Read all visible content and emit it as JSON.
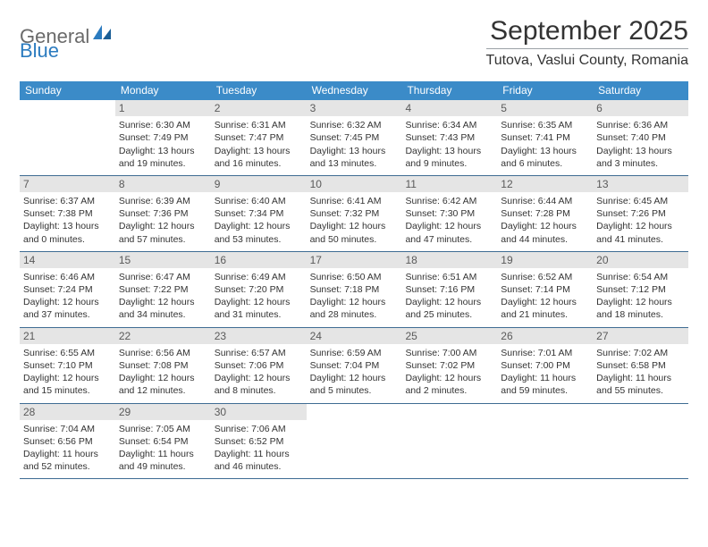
{
  "logo": {
    "general": "General",
    "blue": "Blue"
  },
  "header": {
    "month_title": "September 2025",
    "location": "Tutova, Vaslui County, Romania"
  },
  "colors": {
    "header_bg": "#3b8bc8",
    "header_text": "#ffffff",
    "daynum_bg": "#e5e5e5",
    "week_border": "#3f6c93",
    "text": "#333333",
    "logo_gray": "#6a6a6a",
    "logo_blue": "#2b7bbf"
  },
  "day_headers": [
    "Sunday",
    "Monday",
    "Tuesday",
    "Wednesday",
    "Thursday",
    "Friday",
    "Saturday"
  ],
  "weeks": [
    [
      {
        "n": "",
        "sr": "",
        "ss": "",
        "dl1": "",
        "dl2": "",
        "empty": true
      },
      {
        "n": "1",
        "sr": "Sunrise: 6:30 AM",
        "ss": "Sunset: 7:49 PM",
        "dl1": "Daylight: 13 hours",
        "dl2": "and 19 minutes."
      },
      {
        "n": "2",
        "sr": "Sunrise: 6:31 AM",
        "ss": "Sunset: 7:47 PM",
        "dl1": "Daylight: 13 hours",
        "dl2": "and 16 minutes."
      },
      {
        "n": "3",
        "sr": "Sunrise: 6:32 AM",
        "ss": "Sunset: 7:45 PM",
        "dl1": "Daylight: 13 hours",
        "dl2": "and 13 minutes."
      },
      {
        "n": "4",
        "sr": "Sunrise: 6:34 AM",
        "ss": "Sunset: 7:43 PM",
        "dl1": "Daylight: 13 hours",
        "dl2": "and 9 minutes."
      },
      {
        "n": "5",
        "sr": "Sunrise: 6:35 AM",
        "ss": "Sunset: 7:41 PM",
        "dl1": "Daylight: 13 hours",
        "dl2": "and 6 minutes."
      },
      {
        "n": "6",
        "sr": "Sunrise: 6:36 AM",
        "ss": "Sunset: 7:40 PM",
        "dl1": "Daylight: 13 hours",
        "dl2": "and 3 minutes."
      }
    ],
    [
      {
        "n": "7",
        "sr": "Sunrise: 6:37 AM",
        "ss": "Sunset: 7:38 PM",
        "dl1": "Daylight: 13 hours",
        "dl2": "and 0 minutes."
      },
      {
        "n": "8",
        "sr": "Sunrise: 6:39 AM",
        "ss": "Sunset: 7:36 PM",
        "dl1": "Daylight: 12 hours",
        "dl2": "and 57 minutes."
      },
      {
        "n": "9",
        "sr": "Sunrise: 6:40 AM",
        "ss": "Sunset: 7:34 PM",
        "dl1": "Daylight: 12 hours",
        "dl2": "and 53 minutes."
      },
      {
        "n": "10",
        "sr": "Sunrise: 6:41 AM",
        "ss": "Sunset: 7:32 PM",
        "dl1": "Daylight: 12 hours",
        "dl2": "and 50 minutes."
      },
      {
        "n": "11",
        "sr": "Sunrise: 6:42 AM",
        "ss": "Sunset: 7:30 PM",
        "dl1": "Daylight: 12 hours",
        "dl2": "and 47 minutes."
      },
      {
        "n": "12",
        "sr": "Sunrise: 6:44 AM",
        "ss": "Sunset: 7:28 PM",
        "dl1": "Daylight: 12 hours",
        "dl2": "and 44 minutes."
      },
      {
        "n": "13",
        "sr": "Sunrise: 6:45 AM",
        "ss": "Sunset: 7:26 PM",
        "dl1": "Daylight: 12 hours",
        "dl2": "and 41 minutes."
      }
    ],
    [
      {
        "n": "14",
        "sr": "Sunrise: 6:46 AM",
        "ss": "Sunset: 7:24 PM",
        "dl1": "Daylight: 12 hours",
        "dl2": "and 37 minutes."
      },
      {
        "n": "15",
        "sr": "Sunrise: 6:47 AM",
        "ss": "Sunset: 7:22 PM",
        "dl1": "Daylight: 12 hours",
        "dl2": "and 34 minutes."
      },
      {
        "n": "16",
        "sr": "Sunrise: 6:49 AM",
        "ss": "Sunset: 7:20 PM",
        "dl1": "Daylight: 12 hours",
        "dl2": "and 31 minutes."
      },
      {
        "n": "17",
        "sr": "Sunrise: 6:50 AM",
        "ss": "Sunset: 7:18 PM",
        "dl1": "Daylight: 12 hours",
        "dl2": "and 28 minutes."
      },
      {
        "n": "18",
        "sr": "Sunrise: 6:51 AM",
        "ss": "Sunset: 7:16 PM",
        "dl1": "Daylight: 12 hours",
        "dl2": "and 25 minutes."
      },
      {
        "n": "19",
        "sr": "Sunrise: 6:52 AM",
        "ss": "Sunset: 7:14 PM",
        "dl1": "Daylight: 12 hours",
        "dl2": "and 21 minutes."
      },
      {
        "n": "20",
        "sr": "Sunrise: 6:54 AM",
        "ss": "Sunset: 7:12 PM",
        "dl1": "Daylight: 12 hours",
        "dl2": "and 18 minutes."
      }
    ],
    [
      {
        "n": "21",
        "sr": "Sunrise: 6:55 AM",
        "ss": "Sunset: 7:10 PM",
        "dl1": "Daylight: 12 hours",
        "dl2": "and 15 minutes."
      },
      {
        "n": "22",
        "sr": "Sunrise: 6:56 AM",
        "ss": "Sunset: 7:08 PM",
        "dl1": "Daylight: 12 hours",
        "dl2": "and 12 minutes."
      },
      {
        "n": "23",
        "sr": "Sunrise: 6:57 AM",
        "ss": "Sunset: 7:06 PM",
        "dl1": "Daylight: 12 hours",
        "dl2": "and 8 minutes."
      },
      {
        "n": "24",
        "sr": "Sunrise: 6:59 AM",
        "ss": "Sunset: 7:04 PM",
        "dl1": "Daylight: 12 hours",
        "dl2": "and 5 minutes."
      },
      {
        "n": "25",
        "sr": "Sunrise: 7:00 AM",
        "ss": "Sunset: 7:02 PM",
        "dl1": "Daylight: 12 hours",
        "dl2": "and 2 minutes."
      },
      {
        "n": "26",
        "sr": "Sunrise: 7:01 AM",
        "ss": "Sunset: 7:00 PM",
        "dl1": "Daylight: 11 hours",
        "dl2": "and 59 minutes."
      },
      {
        "n": "27",
        "sr": "Sunrise: 7:02 AM",
        "ss": "Sunset: 6:58 PM",
        "dl1": "Daylight: 11 hours",
        "dl2": "and 55 minutes."
      }
    ],
    [
      {
        "n": "28",
        "sr": "Sunrise: 7:04 AM",
        "ss": "Sunset: 6:56 PM",
        "dl1": "Daylight: 11 hours",
        "dl2": "and 52 minutes."
      },
      {
        "n": "29",
        "sr": "Sunrise: 7:05 AM",
        "ss": "Sunset: 6:54 PM",
        "dl1": "Daylight: 11 hours",
        "dl2": "and 49 minutes."
      },
      {
        "n": "30",
        "sr": "Sunrise: 7:06 AM",
        "ss": "Sunset: 6:52 PM",
        "dl1": "Daylight: 11 hours",
        "dl2": "and 46 minutes."
      },
      {
        "n": "",
        "sr": "",
        "ss": "",
        "dl1": "",
        "dl2": "",
        "empty": true
      },
      {
        "n": "",
        "sr": "",
        "ss": "",
        "dl1": "",
        "dl2": "",
        "empty": true
      },
      {
        "n": "",
        "sr": "",
        "ss": "",
        "dl1": "",
        "dl2": "",
        "empty": true
      },
      {
        "n": "",
        "sr": "",
        "ss": "",
        "dl1": "",
        "dl2": "",
        "empty": true
      }
    ]
  ]
}
